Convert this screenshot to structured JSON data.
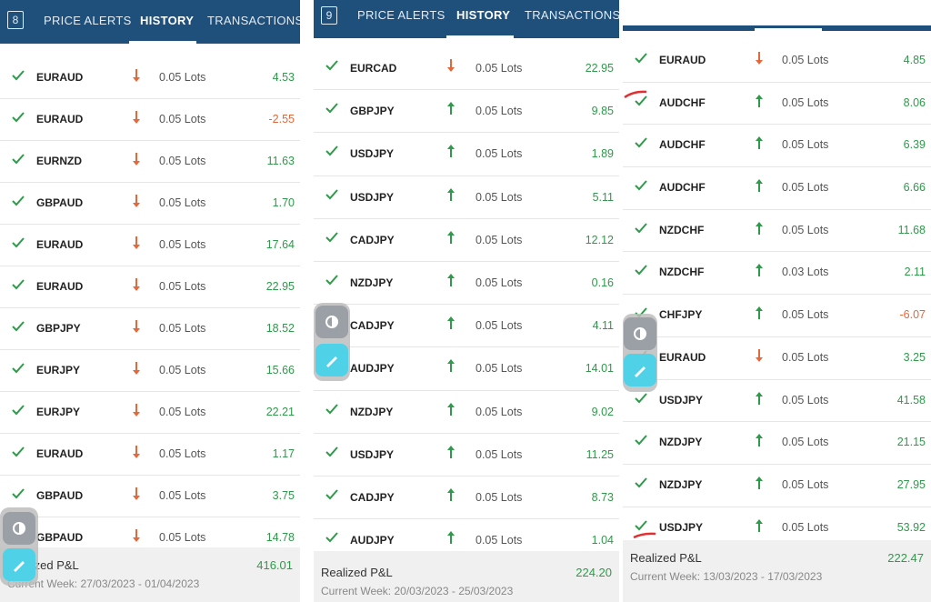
{
  "panels": [
    {
      "badge": "8",
      "tabs": [
        "PRICE ALERTS",
        "HISTORY",
        "TRANSACTIONS"
      ],
      "rows": [
        {
          "symbol": "EURAUD",
          "dir": "down",
          "lots": "0.05 Lots",
          "pnl": "4.53",
          "sign": "pos"
        },
        {
          "symbol": "EURAUD",
          "dir": "down",
          "lots": "0.05 Lots",
          "pnl": "-2.55",
          "sign": "neg"
        },
        {
          "symbol": "EURNZD",
          "dir": "down",
          "lots": "0.05 Lots",
          "pnl": "11.63",
          "sign": "pos"
        },
        {
          "symbol": "GBPAUD",
          "dir": "down",
          "lots": "0.05 Lots",
          "pnl": "1.70",
          "sign": "pos"
        },
        {
          "symbol": "EURAUD",
          "dir": "down",
          "lots": "0.05 Lots",
          "pnl": "17.64",
          "sign": "pos"
        },
        {
          "symbol": "EURAUD",
          "dir": "down",
          "lots": "0.05 Lots",
          "pnl": "22.95",
          "sign": "pos"
        },
        {
          "symbol": "GBPJPY",
          "dir": "down",
          "lots": "0.05 Lots",
          "pnl": "18.52",
          "sign": "pos"
        },
        {
          "symbol": "EURJPY",
          "dir": "down",
          "lots": "0.05 Lots",
          "pnl": "15.66",
          "sign": "pos"
        },
        {
          "symbol": "EURJPY",
          "dir": "down",
          "lots": "0.05 Lots",
          "pnl": "22.21",
          "sign": "pos"
        },
        {
          "symbol": "EURAUD",
          "dir": "down",
          "lots": "0.05 Lots",
          "pnl": "1.17",
          "sign": "pos"
        },
        {
          "symbol": "GBPAUD",
          "dir": "down",
          "lots": "0.05 Lots",
          "pnl": "3.75",
          "sign": "pos"
        },
        {
          "symbol": "GBPAUD",
          "dir": "down",
          "lots": "0.05 Lots",
          "pnl": "14.78",
          "sign": "pos"
        }
      ],
      "realized_label": "Realized P&L",
      "realized_total": "416.01",
      "week": "Current Week: 27/03/2023 - 01/04/2023"
    },
    {
      "badge": "9",
      "tabs": [
        "PRICE ALERTS",
        "HISTORY",
        "TRANSACTIONS"
      ],
      "rows": [
        {
          "symbol": "EURCAD",
          "dir": "down",
          "lots": "0.05 Lots",
          "pnl": "22.95",
          "sign": "pos"
        },
        {
          "symbol": "GBPJPY",
          "dir": "up",
          "lots": "0.05 Lots",
          "pnl": "9.85",
          "sign": "pos"
        },
        {
          "symbol": "USDJPY",
          "dir": "up",
          "lots": "0.05 Lots",
          "pnl": "1.89",
          "sign": "pos"
        },
        {
          "symbol": "USDJPY",
          "dir": "up",
          "lots": "0.05 Lots",
          "pnl": "5.11",
          "sign": "pos"
        },
        {
          "symbol": "CADJPY",
          "dir": "up",
          "lots": "0.05 Lots",
          "pnl": "12.12",
          "sign": "pos"
        },
        {
          "symbol": "NZDJPY",
          "dir": "up",
          "lots": "0.05 Lots",
          "pnl": "0.16",
          "sign": "pos"
        },
        {
          "symbol": "CADJPY",
          "dir": "up",
          "lots": "0.05 Lots",
          "pnl": "4.11",
          "sign": "pos"
        },
        {
          "symbol": "AUDJPY",
          "dir": "up",
          "lots": "0.05 Lots",
          "pnl": "14.01",
          "sign": "pos"
        },
        {
          "symbol": "NZDJPY",
          "dir": "up",
          "lots": "0.05 Lots",
          "pnl": "9.02",
          "sign": "pos"
        },
        {
          "symbol": "USDJPY",
          "dir": "up",
          "lots": "0.05 Lots",
          "pnl": "11.25",
          "sign": "pos"
        },
        {
          "symbol": "CADJPY",
          "dir": "up",
          "lots": "0.05 Lots",
          "pnl": "8.73",
          "sign": "pos"
        },
        {
          "symbol": "AUDJPY",
          "dir": "up",
          "lots": "0.05 Lots",
          "pnl": "1.04",
          "sign": "pos"
        }
      ],
      "realized_label": "Realized P&L",
      "realized_total": "224.20",
      "week": "Current Week: 20/03/2023 - 25/03/2023"
    },
    {
      "rows": [
        {
          "symbol": "EURAUD",
          "dir": "down",
          "lots": "0.05 Lots",
          "pnl": "4.85",
          "sign": "pos"
        },
        {
          "symbol": "AUDCHF",
          "dir": "up",
          "lots": "0.05 Lots",
          "pnl": "8.06",
          "sign": "pos"
        },
        {
          "symbol": "AUDCHF",
          "dir": "up",
          "lots": "0.05 Lots",
          "pnl": "6.39",
          "sign": "pos"
        },
        {
          "symbol": "AUDCHF",
          "dir": "up",
          "lots": "0.05 Lots",
          "pnl": "6.66",
          "sign": "pos"
        },
        {
          "symbol": "NZDCHF",
          "dir": "up",
          "lots": "0.05 Lots",
          "pnl": "11.68",
          "sign": "pos"
        },
        {
          "symbol": "NZDCHF",
          "dir": "up",
          "lots": "0.03 Lots",
          "pnl": "2.11",
          "sign": "pos"
        },
        {
          "symbol": "CHFJPY",
          "dir": "up",
          "lots": "0.05 Lots",
          "pnl": "-6.07",
          "sign": "neg"
        },
        {
          "symbol": "EURAUD",
          "dir": "down",
          "lots": "0.05 Lots",
          "pnl": "3.25",
          "sign": "pos"
        },
        {
          "symbol": "USDJPY",
          "dir": "up",
          "lots": "0.05 Lots",
          "pnl": "41.58",
          "sign": "pos"
        },
        {
          "symbol": "NZDJPY",
          "dir": "up",
          "lots": "0.05 Lots",
          "pnl": "21.15",
          "sign": "pos"
        },
        {
          "symbol": "NZDJPY",
          "dir": "up",
          "lots": "0.05 Lots",
          "pnl": "27.95",
          "sign": "pos"
        },
        {
          "symbol": "USDJPY",
          "dir": "up",
          "lots": "0.05 Lots",
          "pnl": "53.92",
          "sign": "pos"
        }
      ],
      "realized_label": "Realized P&L",
      "realized_total": "222.47",
      "week": "Current Week: 13/03/2023 - 17/03/2023"
    }
  ],
  "icons": {
    "check": "check-icon",
    "up": "arrow-up-icon",
    "down": "arrow-down-icon"
  },
  "colors": {
    "header": "#1f4f7b",
    "positive": "#2e9a4a",
    "negative": "#e5673a"
  }
}
